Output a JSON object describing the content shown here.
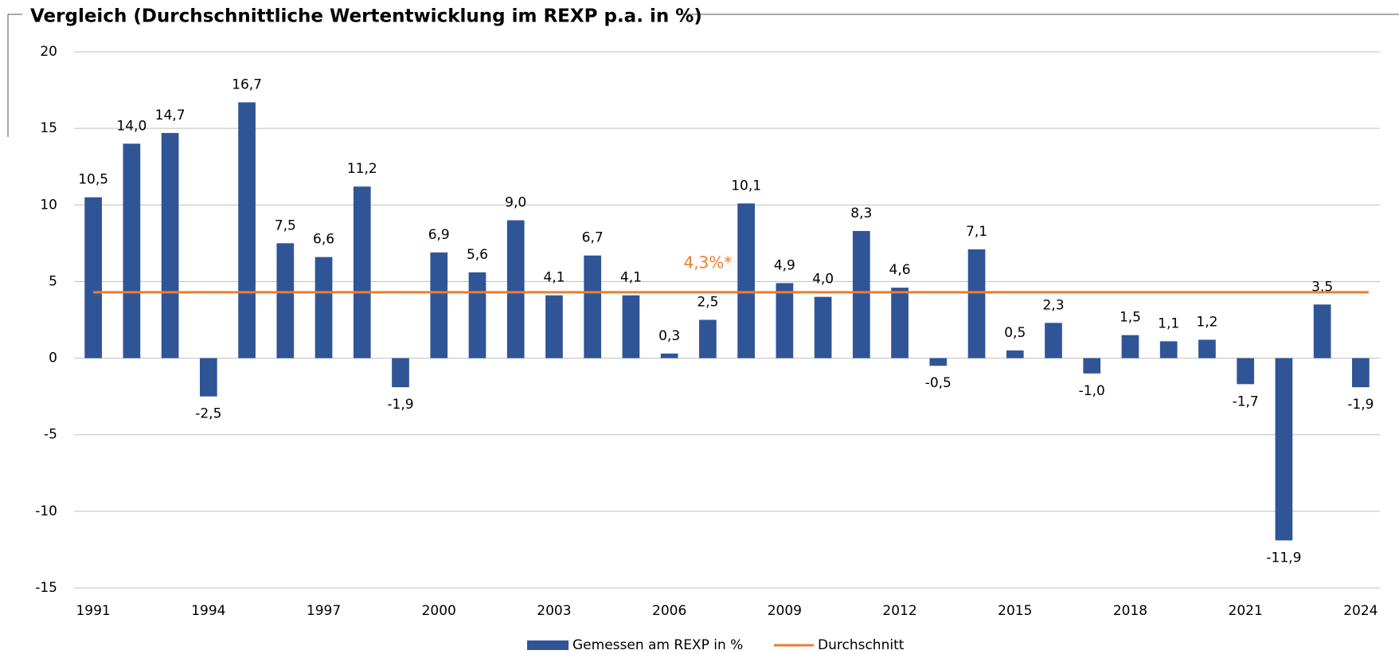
{
  "chart_data": {
    "type": "bar",
    "title": "Vergleich (Durchschnittliche Wertentwicklung im REXP p.a. in %)",
    "categories": [
      "1991",
      null,
      null,
      "1994",
      null,
      null,
      "1997",
      null,
      null,
      "2000",
      null,
      null,
      "2003",
      null,
      null,
      "2006",
      null,
      null,
      "2009",
      null,
      null,
      "2012",
      null,
      null,
      "2015",
      null,
      null,
      "2018",
      null,
      null,
      "2021",
      null,
      null,
      "2024"
    ],
    "series": [
      {
        "name": "Gemessen am REXP in %",
        "color": "#2f5597",
        "values": [
          10.5,
          14.0,
          14.7,
          -2.5,
          16.7,
          7.5,
          6.6,
          11.2,
          -1.9,
          6.9,
          5.6,
          9.0,
          4.1,
          6.7,
          4.1,
          0.3,
          2.5,
          10.1,
          4.9,
          4.0,
          8.3,
          4.6,
          -0.5,
          7.1,
          0.5,
          2.3,
          -1.0,
          1.5,
          1.1,
          1.2,
          -1.7,
          -11.9,
          3.5,
          -1.9
        ],
        "value_labels": [
          "10,5",
          "14,0",
          "14,7",
          "-2,5",
          "16,7",
          "7,5",
          "6,6",
          "11,2",
          "-1,9",
          "6,9",
          "5,6",
          "9,0",
          "4,1",
          "6,7",
          "4,1",
          "0,3",
          "2,5",
          "10,1",
          "4,9",
          "4,0",
          "8,3",
          "4,6",
          "-0,5",
          "7,1",
          "0,5",
          "2,3",
          "-1,0",
          "1,5",
          "1,1",
          "1,2",
          "-1,7",
          "-11,9",
          "3,5",
          "-1,9"
        ]
      }
    ],
    "average_line": {
      "name": "Durchschnitt",
      "color": "#ed7d31",
      "value": 4.3,
      "label": "4,3%*"
    },
    "ylim": [
      -15,
      20
    ],
    "yticks": [
      -15,
      -10,
      -5,
      0,
      5,
      10,
      15,
      20
    ],
    "grid": true,
    "legend": "bottom"
  }
}
